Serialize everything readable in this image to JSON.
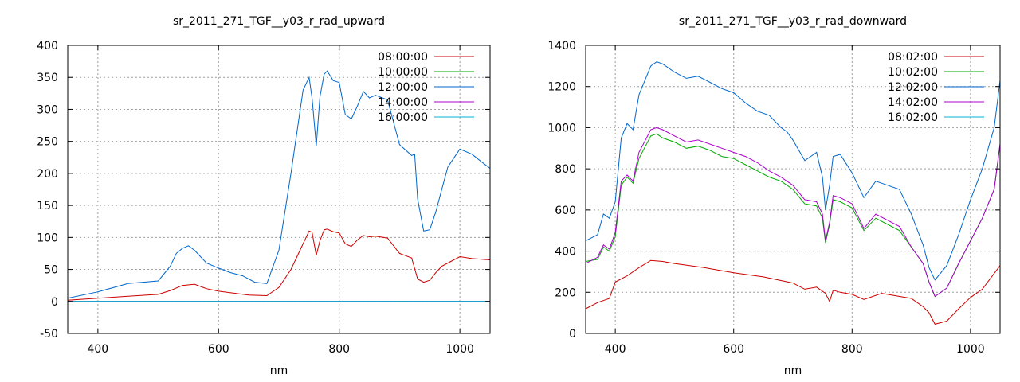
{
  "chart_data": [
    {
      "type": "line",
      "title": "sr_2011_271_TGF__y03_r_rad_upward",
      "xlabel": "nm",
      "ylabel": "",
      "xlim": [
        350,
        1050
      ],
      "ylim": [
        -50,
        400
      ],
      "xticks": [
        400,
        600,
        800,
        1000
      ],
      "yticks": [
        -50,
        0,
        50,
        100,
        150,
        200,
        250,
        300,
        350,
        400
      ],
      "grid": true,
      "legend_position": "top-right",
      "series": [
        {
          "name": "08:00:00",
          "color": "#cc0000",
          "x": [
            350,
            400,
            450,
            500,
            520,
            540,
            560,
            580,
            600,
            650,
            680,
            700,
            720,
            740,
            750,
            755,
            762,
            768,
            775,
            780,
            790,
            800,
            810,
            820,
            830,
            840,
            850,
            860,
            880,
            900,
            920,
            930,
            940,
            950,
            960,
            970,
            980,
            1000,
            1020,
            1050
          ],
          "y": [
            2,
            5,
            8,
            11,
            17,
            25,
            27,
            20,
            16,
            10,
            9,
            22,
            50,
            90,
            110,
            108,
            72,
            95,
            112,
            113,
            109,
            107,
            90,
            86,
            96,
            103,
            101,
            102,
            99,
            75,
            68,
            35,
            30,
            33,
            45,
            55,
            60,
            70,
            67,
            65
          ]
        },
        {
          "name": "10:00:00",
          "color": "#00aa00",
          "x": [
            350,
            1050
          ],
          "y": [
            0,
            0
          ]
        },
        {
          "name": "12:00:00",
          "color": "#0066cc",
          "x": [
            350,
            400,
            450,
            500,
            520,
            530,
            540,
            550,
            560,
            580,
            600,
            620,
            640,
            660,
            680,
            700,
            720,
            740,
            750,
            755,
            762,
            768,
            775,
            780,
            790,
            800,
            810,
            820,
            830,
            840,
            850,
            860,
            880,
            900,
            920,
            925,
            930,
            940,
            950,
            960,
            970,
            980,
            1000,
            1020,
            1040,
            1050
          ],
          "y": [
            5,
            15,
            28,
            32,
            55,
            75,
            83,
            87,
            80,
            60,
            52,
            45,
            40,
            30,
            28,
            80,
            200,
            330,
            350,
            318,
            243,
            320,
            355,
            360,
            345,
            342,
            292,
            285,
            305,
            328,
            318,
            322,
            315,
            245,
            228,
            230,
            160,
            110,
            112,
            140,
            175,
            210,
            238,
            230,
            215,
            208
          ]
        },
        {
          "name": "14:00:00",
          "color": "#aa00cc",
          "x": [
            350,
            1050
          ],
          "y": [
            0,
            0
          ]
        },
        {
          "name": "16:00:00",
          "color": "#00b2d6",
          "x": [
            350,
            1050
          ],
          "y": [
            0,
            0
          ]
        }
      ]
    },
    {
      "type": "line",
      "title": "sr_2011_271_TGF__y03_r_rad_downward",
      "xlabel": "nm",
      "ylabel": "",
      "xlim": [
        350,
        1050
      ],
      "ylim": [
        0,
        1400
      ],
      "xticks": [
        400,
        600,
        800,
        1000
      ],
      "yticks": [
        0,
        200,
        400,
        600,
        800,
        1000,
        1200,
        1400
      ],
      "grid": true,
      "legend_position": "top-right",
      "series": [
        {
          "name": "08:02:00",
          "color": "#cc0000",
          "x": [
            350,
            370,
            390,
            400,
            420,
            440,
            460,
            480,
            500,
            550,
            600,
            650,
            700,
            720,
            740,
            755,
            762,
            768,
            780,
            800,
            820,
            850,
            900,
            920,
            930,
            940,
            960,
            980,
            1000,
            1020,
            1050
          ],
          "y": [
            120,
            150,
            170,
            250,
            280,
            320,
            355,
            350,
            340,
            320,
            295,
            275,
            245,
            215,
            225,
            195,
            155,
            210,
            200,
            190,
            165,
            195,
            170,
            130,
            100,
            45,
            60,
            120,
            175,
            215,
            330
          ]
        },
        {
          "name": "10:02:00",
          "color": "#00aa00",
          "x": [
            350,
            370,
            380,
            390,
            400,
            410,
            420,
            430,
            440,
            460,
            470,
            480,
            500,
            520,
            540,
            560,
            580,
            600,
            620,
            640,
            660,
            680,
            690,
            700,
            720,
            740,
            750,
            755,
            762,
            768,
            780,
            800,
            820,
            840,
            860,
            880,
            900,
            920,
            930,
            940,
            960,
            980,
            1000,
            1020,
            1040,
            1050
          ],
          "y": [
            350,
            360,
            420,
            400,
            470,
            720,
            760,
            730,
            850,
            960,
            970,
            950,
            930,
            900,
            910,
            890,
            860,
            850,
            820,
            790,
            760,
            740,
            720,
            700,
            630,
            620,
            560,
            440,
            530,
            650,
            640,
            610,
            500,
            560,
            530,
            500,
            420,
            340,
            250,
            180,
            220,
            340,
            450,
            560,
            700,
            920
          ]
        },
        {
          "name": "12:02:00",
          "color": "#0066cc",
          "x": [
            350,
            370,
            380,
            390,
            400,
            410,
            420,
            430,
            440,
            460,
            470,
            480,
            500,
            520,
            540,
            560,
            580,
            600,
            620,
            640,
            660,
            680,
            690,
            700,
            720,
            740,
            750,
            755,
            762,
            768,
            780,
            800,
            820,
            840,
            860,
            880,
            900,
            920,
            930,
            940,
            960,
            980,
            1000,
            1020,
            1040,
            1050
          ],
          "y": [
            450,
            480,
            580,
            560,
            640,
            950,
            1020,
            990,
            1160,
            1300,
            1320,
            1310,
            1270,
            1240,
            1250,
            1220,
            1190,
            1170,
            1120,
            1080,
            1060,
            1000,
            980,
            940,
            840,
            880,
            760,
            600,
            720,
            860,
            870,
            780,
            660,
            740,
            720,
            700,
            580,
            430,
            320,
            260,
            330,
            480,
            650,
            800,
            1000,
            1230
          ]
        },
        {
          "name": "14:02:00",
          "color": "#aa00cc",
          "x": [
            350,
            370,
            380,
            390,
            400,
            410,
            420,
            430,
            440,
            460,
            470,
            480,
            500,
            520,
            540,
            560,
            580,
            600,
            620,
            640,
            660,
            680,
            690,
            700,
            720,
            740,
            750,
            755,
            762,
            768,
            780,
            800,
            820,
            840,
            860,
            880,
            900,
            920,
            930,
            940,
            960,
            980,
            1000,
            1020,
            1040,
            1050
          ],
          "y": [
            340,
            370,
            430,
            410,
            490,
            740,
            770,
            740,
            880,
            990,
            1000,
            990,
            960,
            930,
            940,
            920,
            900,
            880,
            860,
            830,
            790,
            760,
            740,
            720,
            650,
            640,
            580,
            450,
            540,
            670,
            660,
            630,
            510,
            580,
            550,
            520,
            420,
            340,
            250,
            180,
            220,
            340,
            450,
            560,
            700,
            920
          ]
        },
        {
          "name": "16:02:00",
          "color": "#00b2d6",
          "x": [
            350,
            1050
          ],
          "y": [
            0,
            0
          ]
        }
      ]
    }
  ],
  "legend_sample_mark": "-"
}
